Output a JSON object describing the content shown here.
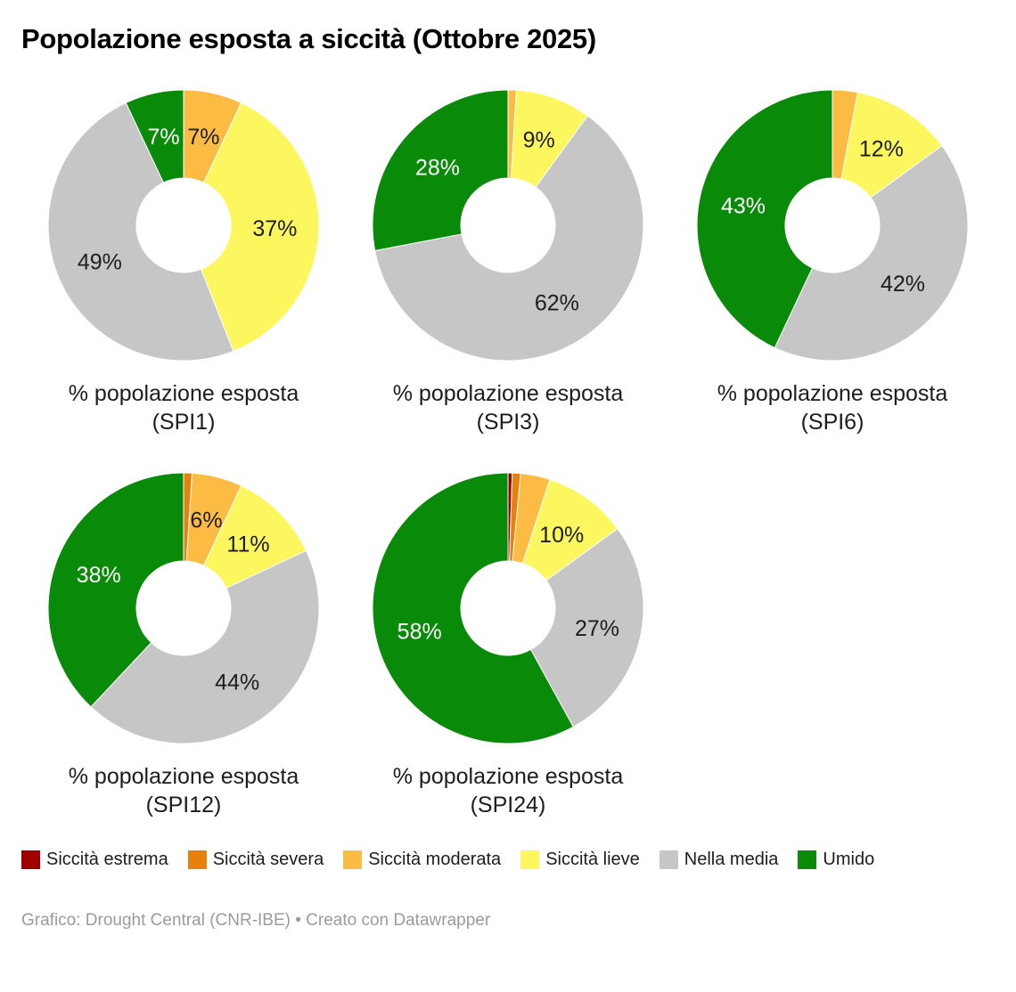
{
  "title": "Popolazione esposta a siccità (Ottobre 2025)",
  "footer_credit": "Grafico: Drought Central (CNR-IBE) • Creato con Datawrapper",
  "colors": {
    "estrema": "#a00000",
    "severa": "#e8800c",
    "moderata": "#fcbb43",
    "lieve": "#fcf75e",
    "media": "#c6c6c6",
    "umido": "#098a09",
    "label_default": "#1d1d1e",
    "label_on_umido": "#ffffff",
    "slice_separator": "#ffffff"
  },
  "legend": [
    {
      "key": "estrema",
      "label": "Siccità estrema"
    },
    {
      "key": "severa",
      "label": "Siccità severa"
    },
    {
      "key": "moderata",
      "label": "Siccità moderata"
    },
    {
      "key": "lieve",
      "label": "Siccità lieve"
    },
    {
      "key": "media",
      "label": "Nella media"
    },
    {
      "key": "umido",
      "label": "Umido"
    }
  ],
  "chart_data": [
    {
      "type": "pie",
      "subtype": "donut",
      "caption_line1": "% popolazione esposta",
      "caption_line2": "(SPI1)",
      "start_angle_deg": -90,
      "direction": "clockwise",
      "slices": [
        {
          "key": "moderata",
          "category": "Siccità moderata",
          "value": 7,
          "label": "7%"
        },
        {
          "key": "lieve",
          "category": "Siccità lieve",
          "value": 37,
          "label": "37%"
        },
        {
          "key": "media",
          "category": "Nella media",
          "value": 49,
          "label": "49%"
        },
        {
          "key": "umido",
          "category": "Umido",
          "value": 7,
          "label": "7%"
        }
      ]
    },
    {
      "type": "pie",
      "subtype": "donut",
      "caption_line1": "% popolazione esposta",
      "caption_line2": "(SPI3)",
      "start_angle_deg": -90,
      "direction": "clockwise",
      "slices": [
        {
          "key": "moderata",
          "category": "Siccità moderata",
          "value": 1,
          "label": null
        },
        {
          "key": "lieve",
          "category": "Siccità lieve",
          "value": 9,
          "label": "9%"
        },
        {
          "key": "media",
          "category": "Nella media",
          "value": 62,
          "label": "62%"
        },
        {
          "key": "umido",
          "category": "Umido",
          "value": 28,
          "label": "28%"
        }
      ]
    },
    {
      "type": "pie",
      "subtype": "donut",
      "caption_line1": "% popolazione esposta",
      "caption_line2": "(SPI6)",
      "start_angle_deg": -90,
      "direction": "clockwise",
      "slices": [
        {
          "key": "moderata",
          "category": "Siccità moderata",
          "value": 3,
          "label": null
        },
        {
          "key": "lieve",
          "category": "Siccità lieve",
          "value": 12,
          "label": "12%"
        },
        {
          "key": "media",
          "category": "Nella media",
          "value": 42,
          "label": "42%"
        },
        {
          "key": "umido",
          "category": "Umido",
          "value": 43,
          "label": "43%"
        }
      ]
    },
    {
      "type": "pie",
      "subtype": "donut",
      "caption_line1": "% popolazione esposta",
      "caption_line2": "(SPI12)",
      "start_angle_deg": -90,
      "direction": "clockwise",
      "slices": [
        {
          "key": "severa",
          "category": "Siccità severa",
          "value": 1,
          "label": null
        },
        {
          "key": "moderata",
          "category": "Siccità moderata",
          "value": 6,
          "label": "6%"
        },
        {
          "key": "lieve",
          "category": "Siccità lieve",
          "value": 11,
          "label": "11%"
        },
        {
          "key": "media",
          "category": "Nella media",
          "value": 44,
          "label": "44%"
        },
        {
          "key": "umido",
          "category": "Umido",
          "value": 38,
          "label": "38%"
        }
      ]
    },
    {
      "type": "pie",
      "subtype": "donut",
      "caption_line1": "% popolazione esposta",
      "caption_line2": "(SPI24)",
      "start_angle_deg": -90,
      "direction": "clockwise",
      "slices": [
        {
          "key": "estrema",
          "category": "Siccità estrema",
          "value": 0.5,
          "label": null
        },
        {
          "key": "severa",
          "category": "Siccità severa",
          "value": 1,
          "label": null
        },
        {
          "key": "moderata",
          "category": "Siccità moderata",
          "value": 3.5,
          "label": null
        },
        {
          "key": "lieve",
          "category": "Siccità lieve",
          "value": 10,
          "label": "10%"
        },
        {
          "key": "media",
          "category": "Nella media",
          "value": 27,
          "label": "27%"
        },
        {
          "key": "umido",
          "category": "Umido",
          "value": 58,
          "label": "58%"
        }
      ]
    }
  ]
}
